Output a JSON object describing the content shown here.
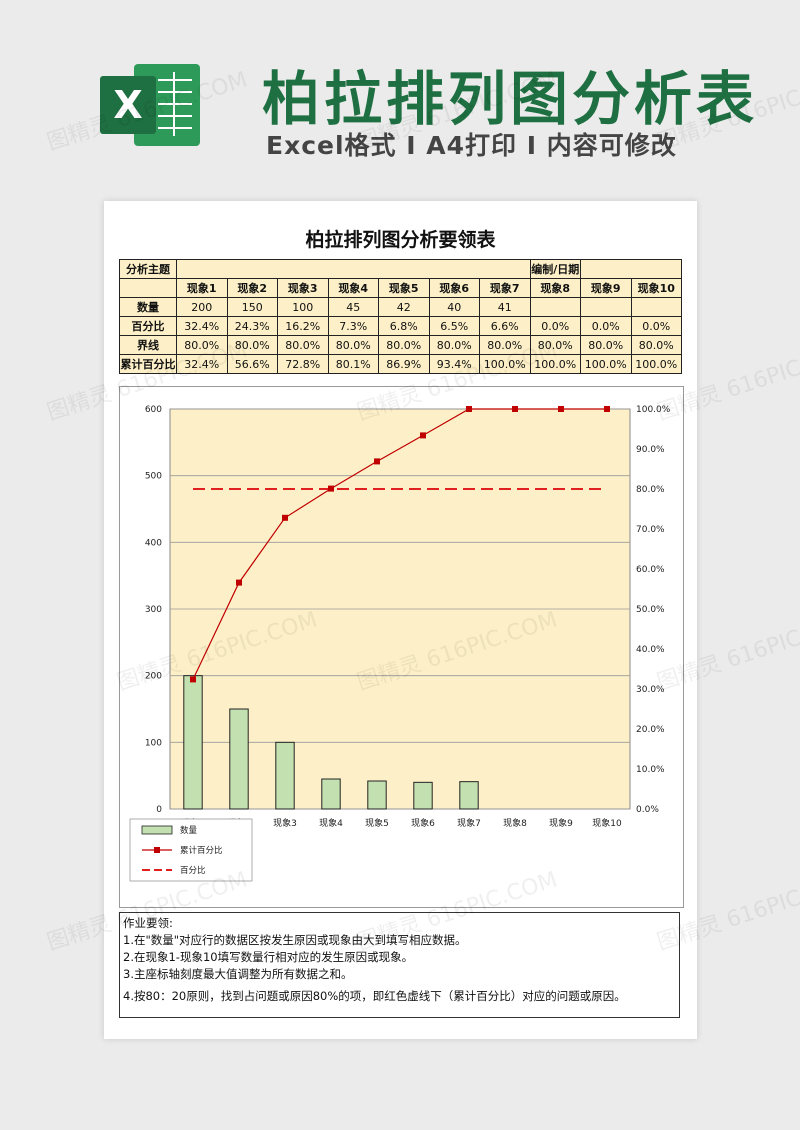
{
  "header": {
    "logo_letter": "X",
    "title": "柏拉排列图分析表",
    "subtitle": "Excel格式 I A4打印 I 内容可修改"
  },
  "colors": {
    "brand": "#1e6f41",
    "bar": "#c3e0b0",
    "line": "#c00000",
    "plot_bg": "#fdf0c8"
  },
  "sheet": {
    "title": "柏拉排列图分析要领表",
    "table": {
      "subject_label": "分析主题",
      "subject_value": "",
      "editor_label": "编制/日期",
      "editor_value": "",
      "columns": [
        "现象1",
        "现象2",
        "现象3",
        "现象4",
        "现象5",
        "现象6",
        "现象7",
        "现象8",
        "现象9",
        "现象10"
      ],
      "rows": [
        {
          "label": "数量",
          "cells": [
            "200",
            "150",
            "100",
            "45",
            "42",
            "40",
            "41",
            "",
            "",
            ""
          ]
        },
        {
          "label": "百分比",
          "cells": [
            "32.4%",
            "24.3%",
            "16.2%",
            "7.3%",
            "6.8%",
            "6.5%",
            "6.6%",
            "0.0%",
            "0.0%",
            "0.0%"
          ]
        },
        {
          "label": "界线",
          "cells": [
            "80.0%",
            "80.0%",
            "80.0%",
            "80.0%",
            "80.0%",
            "80.0%",
            "80.0%",
            "80.0%",
            "80.0%",
            "80.0%"
          ]
        },
        {
          "label": "累计百分比",
          "cells": [
            "32.4%",
            "56.6%",
            "72.8%",
            "80.1%",
            "86.9%",
            "93.4%",
            "100.0%",
            "100.0%",
            "100.0%",
            "100.0%"
          ]
        }
      ]
    },
    "notes": [
      "作业要领:",
      "1.在\"数量\"对应行的数据区按发生原因或现象由大到填写相应数据。",
      "2.在现象1-现象10填写数量行相对应的发生原因或现象。",
      "3.主座标轴刻度最大值调整为所有数据之和。",
      "4.按80：20原则，找到占问题或原因80%的项，即红色虚线下（累计百分比）对应的问题或原因。"
    ]
  },
  "watermark": {
    "text": "图精灵 616PIC.COM"
  },
  "chart_data": {
    "type": "bar",
    "categories": [
      "现象1",
      "现象2",
      "现象3",
      "现象4",
      "现象5",
      "现象6",
      "现象7",
      "现象8",
      "现象9",
      "现象10"
    ],
    "series": [
      {
        "name": "数量",
        "type": "bar",
        "axis": "left",
        "values": [
          200,
          150,
          100,
          45,
          42,
          40,
          41,
          0,
          0,
          0
        ]
      },
      {
        "name": "累计百分比",
        "type": "line",
        "axis": "right",
        "values": [
          32.4,
          56.6,
          72.8,
          80.1,
          86.9,
          93.4,
          100.0,
          100.0,
          100.0,
          100.0
        ]
      },
      {
        "name": "百分比",
        "type": "line-dashed",
        "axis": "right",
        "values": [
          80,
          80,
          80,
          80,
          80,
          80,
          80,
          80,
          80,
          80
        ]
      }
    ],
    "y_left": {
      "ticks": [
        "0",
        "100",
        "200",
        "300",
        "400",
        "500",
        "600"
      ],
      "lim": [
        0,
        600
      ]
    },
    "y_right": {
      "ticks": [
        "0.0%",
        "10.0%",
        "20.0%",
        "30.0%",
        "40.0%",
        "50.0%",
        "60.0%",
        "70.0%",
        "80.0%",
        "90.0%",
        "100.0%"
      ],
      "lim": [
        0,
        100
      ]
    },
    "grid": true,
    "legend_position": "bottom-left"
  }
}
